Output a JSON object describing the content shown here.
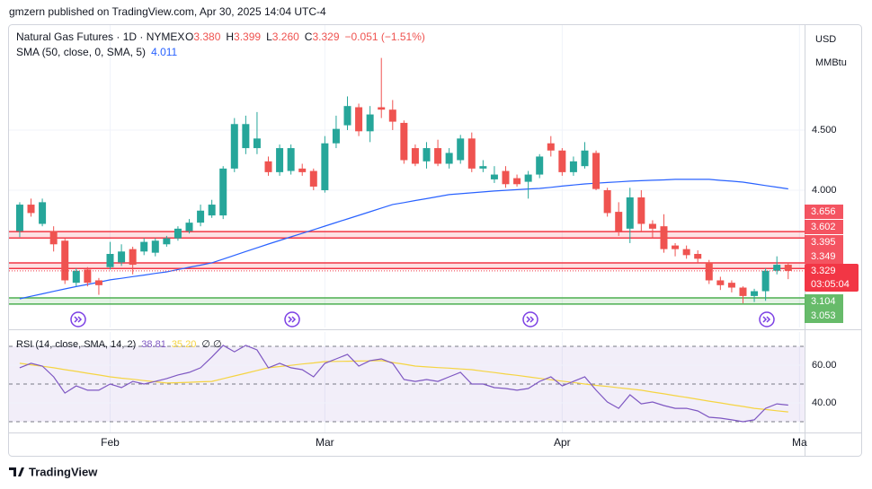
{
  "header": "gmzern published on TradingView.com, Apr 30, 2025 14:04 UTC-4",
  "footer": "TradingView",
  "chart_data": [
    {
      "type": "candlestick",
      "title": "Natural Gas Futures · 1D · NYMEX",
      "ohlc_legend": [
        {
          "label": "O",
          "value": "3.380"
        },
        {
          "label": "H",
          "value": "3.399"
        },
        {
          "label": "L",
          "value": "3.260"
        },
        {
          "label": "C",
          "value": "3.329"
        }
      ],
      "change": "−0.051 (−1.51%)",
      "currency": "USD",
      "unit": "MMBtu",
      "up_color": "#26a69a",
      "down_color": "#ef5350",
      "grid": true,
      "xlim": [
        -0.95,
        69.45
      ],
      "xticks": [
        {
          "value": 8,
          "label": "Feb"
        },
        {
          "value": 27,
          "label": "Mar"
        },
        {
          "value": 48,
          "label": "Apr"
        },
        {
          "value": 69,
          "label": "Ma"
        }
      ],
      "ylim": [
        2.858,
        5.373
      ],
      "yticks": [
        {
          "value": 4.5,
          "label": "4.500"
        },
        {
          "value": 4,
          "label": "4.000"
        }
      ],
      "open": [
        3.66,
        3.88,
        3.72,
        3.66,
        3.58,
        3.23,
        3.34,
        3.25,
        3.36,
        3.4,
        3.51,
        3.49,
        3.48,
        3.55,
        3.6,
        3.66,
        3.73,
        3.79,
        3.79,
        4.18,
        4.35,
        4.35,
        4.24,
        4.15,
        4.16,
        4.18,
        4.16,
        4.0,
        4.39,
        4.54,
        4.69,
        4.49,
        4.69,
        4.67,
        4.56,
        4.35,
        4.24,
        4.35,
        4.22,
        4.25,
        4.43,
        4.18,
        4.09,
        4.16,
        4.1,
        4.07,
        4.13,
        4.39,
        4.33,
        4.15,
        4.2,
        4.31,
        4.0,
        3.82,
        3.68,
        3.94,
        3.72,
        3.7,
        3.54,
        3.51,
        3.47,
        3.4,
        3.25,
        3.23,
        3.19,
        3.12,
        3.16,
        3.33,
        3.38
      ],
      "high": [
        3.9,
        3.93,
        3.93,
        3.7,
        3.6,
        3.35,
        3.36,
        3.27,
        3.57,
        3.55,
        3.53,
        3.6,
        3.6,
        3.62,
        3.7,
        3.76,
        3.88,
        3.92,
        4.2,
        4.6,
        4.62,
        4.65,
        4.28,
        4.38,
        4.38,
        4.22,
        4.18,
        4.45,
        4.62,
        4.78,
        4.72,
        4.7,
        5.1,
        4.75,
        4.58,
        4.38,
        4.4,
        4.42,
        4.35,
        4.46,
        4.48,
        4.25,
        4.2,
        4.2,
        4.13,
        4.16,
        4.3,
        4.45,
        4.35,
        4.28,
        4.4,
        4.33,
        4.02,
        3.9,
        4.02,
        4.0,
        3.75,
        3.8,
        3.56,
        3.54,
        3.5,
        3.42,
        3.28,
        3.25,
        3.2,
        3.18,
        3.35,
        3.45,
        3.399
      ],
      "low": [
        3.61,
        3.78,
        3.7,
        3.49,
        3.22,
        3.2,
        3.2,
        3.13,
        3.34,
        3.37,
        3.3,
        3.46,
        3.45,
        3.53,
        3.58,
        3.64,
        3.7,
        3.77,
        3.76,
        4.15,
        4.3,
        4.3,
        4.12,
        4.12,
        4.13,
        4.12,
        4.0,
        3.98,
        4.35,
        4.5,
        4.45,
        4.4,
        4.6,
        4.5,
        4.22,
        4.2,
        4.18,
        4.2,
        4.18,
        4.22,
        4.15,
        4.15,
        4.06,
        4.02,
        4.03,
        3.93,
        4.1,
        4.28,
        4.12,
        4.12,
        4.18,
        4.0,
        3.78,
        3.62,
        3.56,
        3.65,
        3.6,
        3.48,
        3.45,
        3.43,
        3.4,
        3.22,
        3.17,
        3.15,
        3.06,
        3.07,
        3.08,
        3.3,
        3.26
      ],
      "close": [
        3.88,
        3.81,
        3.9,
        3.55,
        3.25,
        3.33,
        3.23,
        3.21,
        3.47,
        3.49,
        3.38,
        3.57,
        3.58,
        3.6,
        3.68,
        3.73,
        3.83,
        3.88,
        4.18,
        4.55,
        4.55,
        4.43,
        4.15,
        4.35,
        4.35,
        4.15,
        4.03,
        4.39,
        4.51,
        4.7,
        4.49,
        4.63,
        4.67,
        4.57,
        4.25,
        4.22,
        4.35,
        4.22,
        4.31,
        4.43,
        4.18,
        4.2,
        4.13,
        4.05,
        4.05,
        4.13,
        4.28,
        4.33,
        4.15,
        4.24,
        4.33,
        4.01,
        3.81,
        3.66,
        3.94,
        3.72,
        3.68,
        3.51,
        3.51,
        3.46,
        3.43,
        3.25,
        3.21,
        3.19,
        3.12,
        3.16,
        3.33,
        3.38,
        3.329
      ],
      "indicator": {
        "name": "SMA (50, close, 0, SMA, 5)",
        "color": "#2962ff",
        "values": [
          3.097,
          3.118,
          3.138,
          3.159,
          3.179,
          3.198,
          3.216,
          3.235,
          3.254,
          3.267,
          3.281,
          3.294,
          3.308,
          3.321,
          3.34,
          3.359,
          3.377,
          3.396,
          3.427,
          3.458,
          3.49,
          3.521,
          3.552,
          3.582,
          3.612,
          3.641,
          3.671,
          3.701,
          3.731,
          3.761,
          3.791,
          3.821,
          3.851,
          3.881,
          3.897,
          3.914,
          3.93,
          3.947,
          3.963,
          3.971,
          3.978,
          3.986,
          3.993,
          3.999,
          4.004,
          4.01,
          4.015,
          4.024,
          4.034,
          4.043,
          4.052,
          4.058,
          4.064,
          4.069,
          4.075,
          4.079,
          4.083,
          4.086,
          4.09,
          4.09,
          4.09,
          4.09,
          4.082,
          4.075,
          4.067,
          4.053,
          4.039,
          4.025,
          4.011
        ]
      },
      "zones": [
        {
          "top": 3.656,
          "bottom": 3.602,
          "color": "#f23645"
        },
        {
          "top": 3.395,
          "bottom": 3.349,
          "color": "#f23645"
        },
        {
          "top": 3.104,
          "bottom": 3.053,
          "color": "#4caf50"
        }
      ],
      "last_price": 3.329,
      "last_color": "#f23645",
      "countdown": "03:05:04"
    },
    {
      "type": "line",
      "title": "RSI (14, close, SMA, 14, 2)",
      "legend_values": [
        "38.81",
        "35.20",
        "∅ ∅"
      ],
      "ylim": [
        24.3,
        77.6
      ],
      "yticks": [
        {
          "value": 60,
          "label": "60.00"
        },
        {
          "value": 40,
          "label": "40.00"
        }
      ],
      "bands": [
        70,
        50,
        30
      ],
      "band_color": "#7e57c2",
      "series": [
        {
          "color": "#7e57c2",
          "values": [
            58.6,
            61.0,
            59.5,
            53.8,
            45.2,
            49.0,
            46.7,
            46.7,
            50.0,
            48.1,
            51.4,
            50.0,
            51.4,
            52.9,
            54.8,
            56.2,
            58.6,
            64.3,
            70.5,
            67.1,
            70.5,
            68.1,
            58.6,
            61.0,
            58.6,
            57.6,
            53.8,
            61.0,
            63.3,
            65.7,
            59.5,
            62.4,
            63.3,
            61.0,
            52.4,
            51.4,
            52.4,
            51.4,
            53.8,
            56.2,
            50.0,
            50.0,
            48.1,
            47.6,
            46.7,
            47.6,
            51.4,
            53.8,
            49.0,
            51.4,
            53.8,
            46.7,
            40.5,
            37.1,
            44.3,
            39.5,
            40.5,
            38.6,
            37.1,
            37.1,
            35.7,
            32.4,
            31.9,
            31.0,
            30.0,
            31.0,
            37.1,
            39.5,
            38.81
          ]
        },
        {
          "color": "#f5d442",
          "values": [
            61.0,
            60.2,
            59.4,
            58.6,
            57.6,
            56.7,
            55.7,
            54.8,
            53.8,
            53.1,
            52.5,
            51.8,
            51.2,
            50.5,
            50.7,
            50.9,
            51.2,
            51.4,
            52.8,
            54.3,
            55.7,
            57.2,
            58.6,
            59.3,
            59.9,
            60.6,
            61.2,
            61.9,
            62.0,
            62.1,
            62.2,
            62.3,
            62.4,
            61.4,
            60.5,
            59.5,
            59.1,
            58.7,
            58.4,
            58.0,
            57.6,
            56.8,
            56.1,
            55.3,
            54.6,
            53.8,
            53.0,
            52.3,
            51.5,
            50.8,
            50.0,
            49.3,
            48.7,
            48.0,
            47.4,
            46.7,
            45.7,
            44.8,
            43.8,
            42.9,
            41.9,
            40.9,
            40.0,
            39.0,
            38.1,
            37.1,
            36.5,
            35.8,
            35.2
          ]
        }
      ]
    }
  ]
}
